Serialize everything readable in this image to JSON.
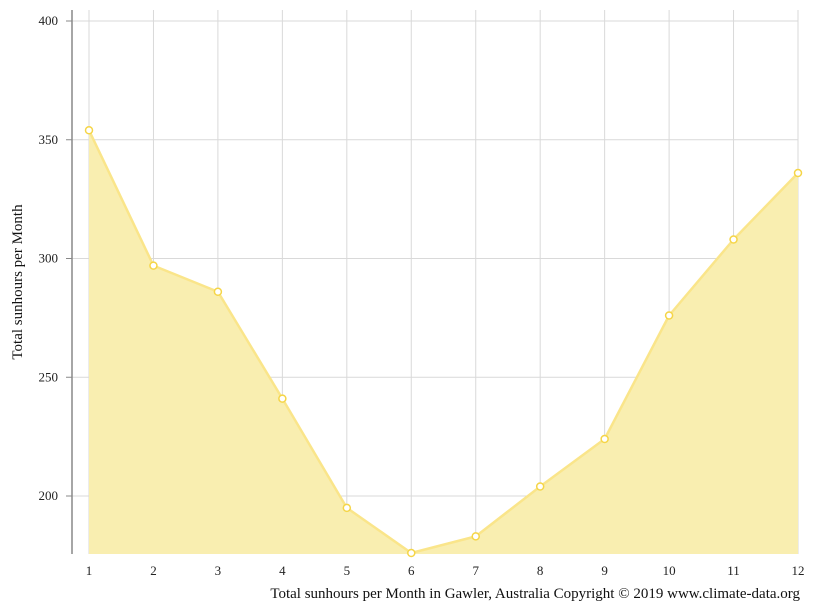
{
  "chart_data": {
    "type": "area",
    "title": "",
    "xlabel": "",
    "ylabel": "Total sunhours per Month",
    "caption": "Total sunhours per Month in Gawler, Australia Copyright © 2019 www.climate-data.org",
    "x": [
      1,
      2,
      3,
      4,
      5,
      6,
      7,
      8,
      9,
      10,
      11,
      12
    ],
    "xticks": [
      "1",
      "2",
      "3",
      "4",
      "5",
      "6",
      "7",
      "8",
      "9",
      "10",
      "11",
      "12"
    ],
    "yticks": [
      200,
      250,
      300,
      350,
      400
    ],
    "ylim": [
      176,
      404
    ],
    "grid": true,
    "series": [
      {
        "values": [
          354,
          297,
          286,
          241,
          195,
          176,
          183,
          204,
          224,
          276,
          308,
          336
        ]
      }
    ],
    "colors": {
      "fill": "#f9eeb0",
      "line": "#fae58a",
      "marker": "#f5d547",
      "grid": "#d9d9d9",
      "axis": "#888888"
    }
  }
}
